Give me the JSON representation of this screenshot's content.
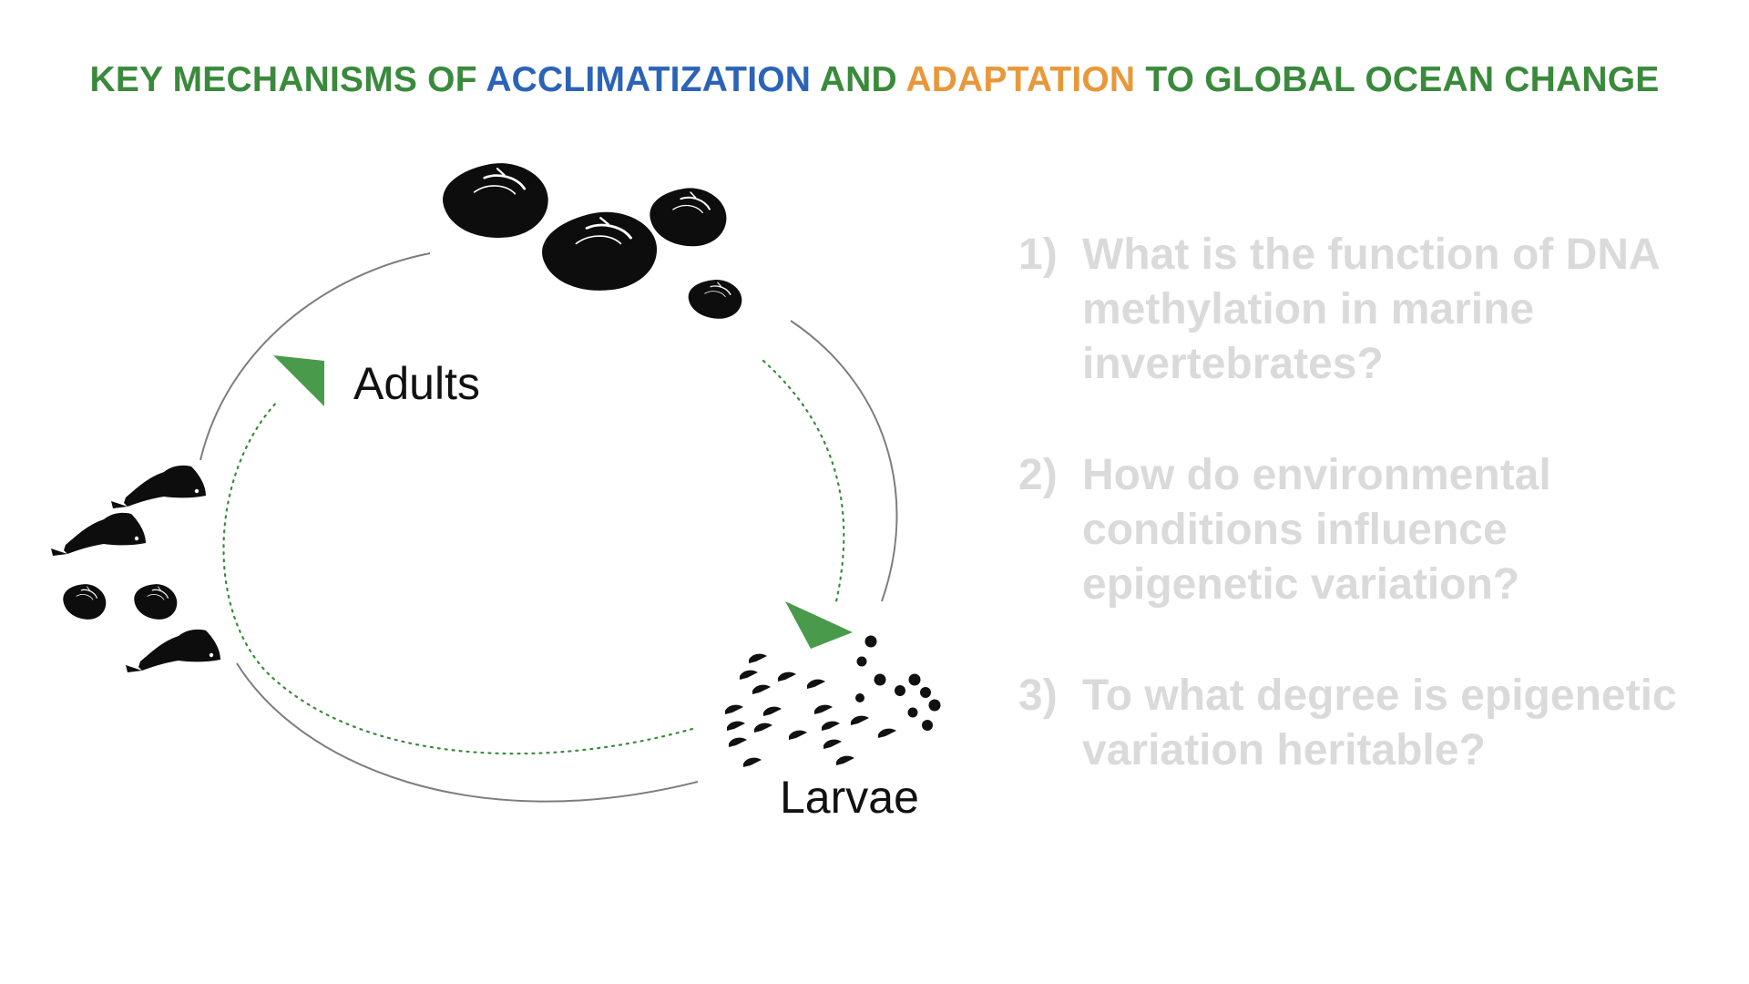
{
  "title": {
    "part1": "KEY MECHANISMS OF ",
    "part2": "ACCLIMATIZATION",
    "part3": " AND ",
    "part4": "ADAPTATION",
    "part5": " TO GLOBAL OCEAN CHANGE"
  },
  "colors": {
    "green": "#3a8a3c",
    "blue": "#2b63b8",
    "orange": "#e8983a",
    "arrow_green": "#4a9a4c",
    "question_gray": "#dadada"
  },
  "diagram": {
    "adults_label": "Adults",
    "larvae_label": "Larvae",
    "icons": {
      "adult_shells": "mussel-shell-icon",
      "offspring": "fish-icon",
      "larvae": "larva-icon"
    }
  },
  "questions": [
    {
      "num": "1)",
      "line1": "What is the function of DNA",
      "line2": "methylation in marine",
      "line3": "invertebrates?"
    },
    {
      "num": "2)",
      "line1": "How do environmental",
      "line2": "conditions influence",
      "line3": "epigenetic variation?"
    },
    {
      "num": "3)",
      "line1": "To what degree is epigenetic",
      "line2": "variation heritable?"
    }
  ]
}
